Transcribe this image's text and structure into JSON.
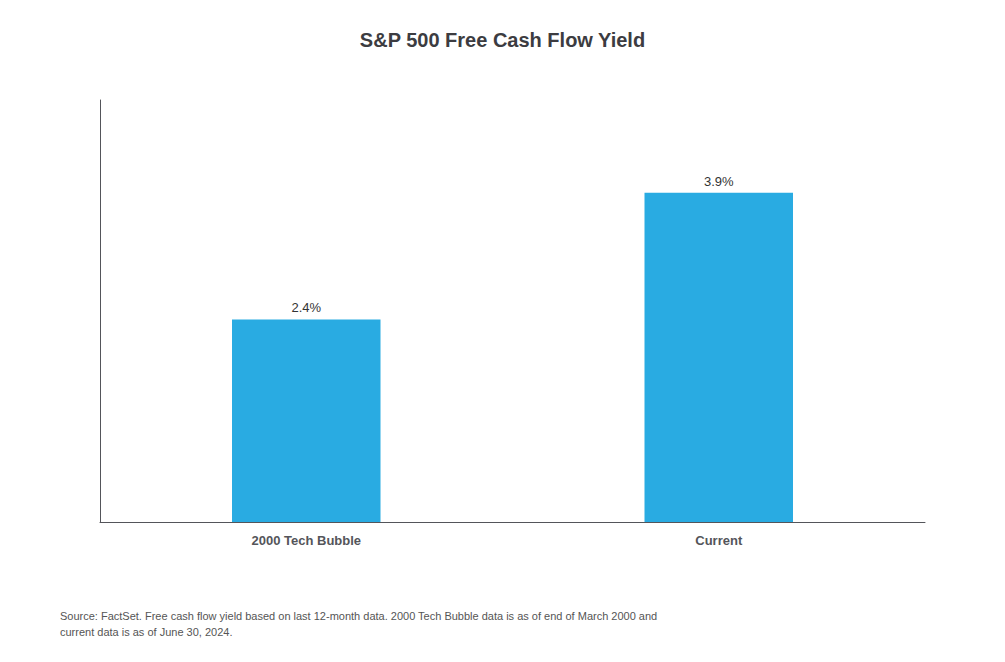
{
  "chart_data": {
    "type": "bar",
    "title": "S&P 500 Free Cash Flow Yield",
    "categories": [
      "2000 Tech Bubble",
      "Current"
    ],
    "values": [
      2.4,
      3.9
    ],
    "value_labels": [
      "2.4%",
      "3.9%"
    ],
    "data_labels": true,
    "color": "#29ABE2",
    "ylim": [
      0,
      5
    ],
    "tick_labels": "x",
    "grid": false,
    "annotation": "Source: FactSet. Free cash flow yield based on last 12-month data. 2000 Tech Bubble data is as of end of March 2000 and\ncurrent data is as of June 30, 2024."
  }
}
